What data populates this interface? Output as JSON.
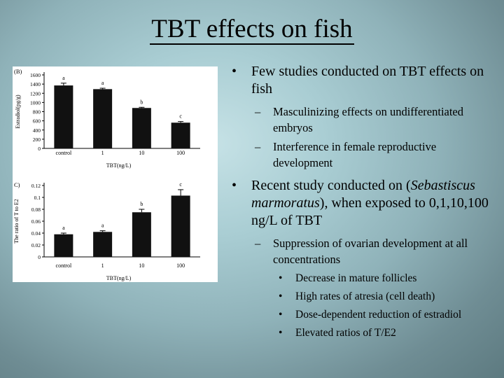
{
  "title": "TBT effects on fish",
  "bullets": {
    "b1": "Few studies conducted on TBT effects on fish",
    "b1_sub1": "Masculinizing effects on undifferentiated embryos",
    "b1_sub2": "Interference in female reproductive development",
    "b2_pre": "Recent study conducted on (",
    "b2_species": "Sebastiscus marmoratus",
    "b2_post": "), when exposed to 0,1,10,100 ng/L of TBT",
    "b2_sub1": "Suppression of ovarian development at all concentrations",
    "b2_items": [
      "Decrease in mature follicles",
      "High rates of atresia (cell death)",
      "Dose-dependent reduction of estradiol",
      "Elevated ratios of T/E2"
    ]
  },
  "chart_data": [
    {
      "type": "bar",
      "panel": "(B)",
      "categories": [
        "control",
        "1",
        "10",
        "100"
      ],
      "values": [
        1370,
        1290,
        880,
        560
      ],
      "errors": [
        50,
        20,
        15,
        25
      ],
      "letters": [
        "a",
        "a",
        "b",
        "c"
      ],
      "ylabel": "Estradiol(pg/g)",
      "xlabel": "TBT(ng/L)",
      "yticks": [
        "0",
        "200",
        "400",
        "600",
        "800",
        "1000",
        "1200",
        "1400",
        "1600"
      ],
      "ylim": [
        0,
        1600
      ]
    },
    {
      "type": "bar",
      "panel": "C)",
      "categories": [
        "control",
        "1",
        "10",
        "100"
      ],
      "values": [
        0.038,
        0.042,
        0.075,
        0.103
      ],
      "errors": [
        0.002,
        0.002,
        0.005,
        0.01
      ],
      "letters": [
        "a",
        "a",
        "b",
        "c"
      ],
      "ylabel": "The ratio of T to E2",
      "xlabel": "TBT(ng/L)",
      "yticks": [
        "0",
        "0.02",
        "0.04",
        "0.06",
        "0.08",
        "0.1",
        "0.12"
      ],
      "ylim": [
        0,
        0.12
      ]
    }
  ],
  "colors": {
    "bar": "#111111",
    "figure_bg": "#ffffff",
    "text": "#000000"
  }
}
